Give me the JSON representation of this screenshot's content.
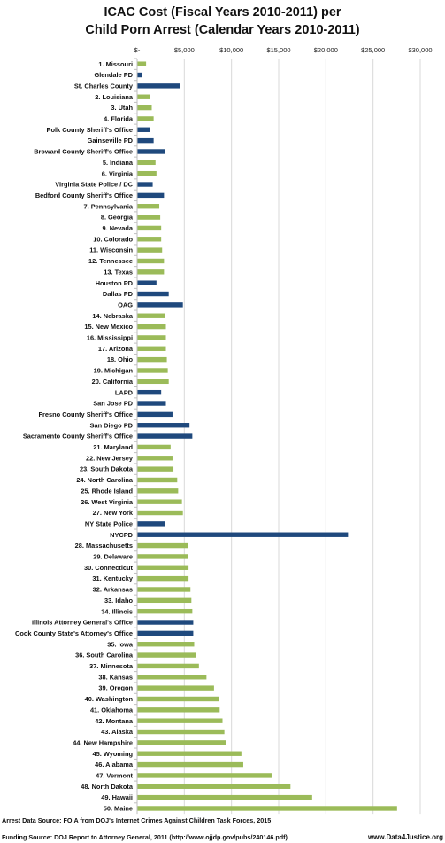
{
  "chart_data": {
    "type": "bar",
    "orientation": "horizontal",
    "title_line1": "ICAC Cost (Fiscal Years 2010-2011) per",
    "title_line2": "Child Porn Arrest (Calendar Years 2010-2011)",
    "xlim": [
      0,
      30000
    ],
    "x_ticks": [
      0,
      5000,
      10000,
      15000,
      20000,
      25000,
      30000
    ],
    "x_tick_labels": [
      "$-",
      "$5,000",
      "$10,000",
      "$15,000",
      "$20,000",
      "$25,000",
      "$30,000"
    ],
    "grid": true,
    "colors": {
      "state": "#9bbb59",
      "local": "#1f497d",
      "grid": "#d9d9d9",
      "axis": "#bfbfbf"
    },
    "bars": [
      {
        "label": "1. Missouri",
        "value": 900,
        "kind": "state"
      },
      {
        "label": "Glendale PD",
        "value": 500,
        "kind": "local"
      },
      {
        "label": "St. Charles County",
        "value": 4500,
        "kind": "local"
      },
      {
        "label": "2. Louisiana",
        "value": 1300,
        "kind": "state"
      },
      {
        "label": "3. Utah",
        "value": 1500,
        "kind": "state"
      },
      {
        "label": "4. Florida",
        "value": 1700,
        "kind": "state"
      },
      {
        "label": "Polk County Sheriff's Office",
        "value": 1300,
        "kind": "local"
      },
      {
        "label": "Gainseville PD",
        "value": 1700,
        "kind": "local"
      },
      {
        "label": "Broward County Sheriff's Office",
        "value": 2900,
        "kind": "local"
      },
      {
        "label": "5. Indiana",
        "value": 1900,
        "kind": "state"
      },
      {
        "label": "6. Virginia",
        "value": 2000,
        "kind": "state"
      },
      {
        "label": "Virginia State Police / DC",
        "value": 1600,
        "kind": "local"
      },
      {
        "label": "Bedford County Sheriff's Office",
        "value": 2800,
        "kind": "local"
      },
      {
        "label": "7. Pennsylvania",
        "value": 2300,
        "kind": "state"
      },
      {
        "label": "8. Georgia",
        "value": 2400,
        "kind": "state"
      },
      {
        "label": "9. Nevada",
        "value": 2500,
        "kind": "state"
      },
      {
        "label": "10. Colorado",
        "value": 2500,
        "kind": "state"
      },
      {
        "label": "11. Wisconsin",
        "value": 2600,
        "kind": "state"
      },
      {
        "label": "12. Tennessee",
        "value": 2800,
        "kind": "state"
      },
      {
        "label": "13. Texas",
        "value": 2800,
        "kind": "state"
      },
      {
        "label": "Houston PD",
        "value": 2000,
        "kind": "local"
      },
      {
        "label": "Dallas PD",
        "value": 3300,
        "kind": "local"
      },
      {
        "label": "OAG",
        "value": 4800,
        "kind": "local"
      },
      {
        "label": "14. Nebraska",
        "value": 2900,
        "kind": "state"
      },
      {
        "label": "15. New Mexico",
        "value": 3000,
        "kind": "state"
      },
      {
        "label": "16. Mississippi",
        "value": 3000,
        "kind": "state"
      },
      {
        "label": "17. Arizona",
        "value": 3000,
        "kind": "state"
      },
      {
        "label": "18. Ohio",
        "value": 3100,
        "kind": "state"
      },
      {
        "label": "19. Michigan",
        "value": 3200,
        "kind": "state"
      },
      {
        "label": "20. California",
        "value": 3300,
        "kind": "state"
      },
      {
        "label": "LAPD",
        "value": 2500,
        "kind": "local"
      },
      {
        "label": "San Jose PD",
        "value": 3000,
        "kind": "local"
      },
      {
        "label": "Fresno County Sheriff's Office",
        "value": 3700,
        "kind": "local"
      },
      {
        "label": "San Diego PD",
        "value": 5500,
        "kind": "local"
      },
      {
        "label": "Sacramento County Sheriff's Office",
        "value": 5800,
        "kind": "local"
      },
      {
        "label": "21. Maryland",
        "value": 3500,
        "kind": "state"
      },
      {
        "label": "22. New Jersey",
        "value": 3700,
        "kind": "state"
      },
      {
        "label": "23. South Dakota",
        "value": 3800,
        "kind": "state"
      },
      {
        "label": "24. North Carolina",
        "value": 4200,
        "kind": "state"
      },
      {
        "label": "25. Rhode Island",
        "value": 4300,
        "kind": "state"
      },
      {
        "label": "26. West Virginia",
        "value": 4700,
        "kind": "state"
      },
      {
        "label": "27. New York",
        "value": 4800,
        "kind": "state"
      },
      {
        "label": "NY State Police",
        "value": 2900,
        "kind": "local"
      },
      {
        "label": "NYCPD",
        "value": 22300,
        "kind": "local"
      },
      {
        "label": "28. Massachusetts",
        "value": 5300,
        "kind": "state"
      },
      {
        "label": "29. Delaware",
        "value": 5300,
        "kind": "state"
      },
      {
        "label": "30. Connecticut",
        "value": 5400,
        "kind": "state"
      },
      {
        "label": "31. Kentucky",
        "value": 5400,
        "kind": "state"
      },
      {
        "label": "32. Arkansas",
        "value": 5600,
        "kind": "state"
      },
      {
        "label": "33. Idaho",
        "value": 5700,
        "kind": "state"
      },
      {
        "label": "34. Illinois",
        "value": 5800,
        "kind": "state"
      },
      {
        "label": "Illinois Attorney General's Office",
        "value": 5900,
        "kind": "local"
      },
      {
        "label": "Cook County State's Attorney's Office",
        "value": 5900,
        "kind": "local"
      },
      {
        "label": "35. Iowa",
        "value": 6000,
        "kind": "state"
      },
      {
        "label": "36. South Carolina",
        "value": 6200,
        "kind": "state"
      },
      {
        "label": "37. Minnesota",
        "value": 6500,
        "kind": "state"
      },
      {
        "label": "38. Kansas",
        "value": 7300,
        "kind": "state"
      },
      {
        "label": "39. Oregon",
        "value": 8100,
        "kind": "state"
      },
      {
        "label": "40. Washington",
        "value": 8600,
        "kind": "state"
      },
      {
        "label": "41. Oklahoma",
        "value": 8700,
        "kind": "state"
      },
      {
        "label": "42. Montana",
        "value": 9000,
        "kind": "state"
      },
      {
        "label": "43. Alaska",
        "value": 9200,
        "kind": "state"
      },
      {
        "label": "44. New Hampshire",
        "value": 9400,
        "kind": "state"
      },
      {
        "label": "45. Wyoming",
        "value": 11000,
        "kind": "state"
      },
      {
        "label": "46. Alabama",
        "value": 11200,
        "kind": "state"
      },
      {
        "label": "47. Vermont",
        "value": 14200,
        "kind": "state"
      },
      {
        "label": "48. North Dakota",
        "value": 16200,
        "kind": "state"
      },
      {
        "label": "49. Hawaii",
        "value": 18500,
        "kind": "state"
      },
      {
        "label": "50. Maine",
        "value": 27500,
        "kind": "state"
      }
    ]
  },
  "footer": {
    "arrest_source": "Arrest Data Source: FOIA from DOJ's Internet Crimes Against Children Task Forces, 2015",
    "funding_source": "Funding Source: DOJ Report to Attorney General, 2011 (http://www.ojjdp.gov/pubs/240146.pdf)",
    "website": "www.Data4Justice.org"
  }
}
